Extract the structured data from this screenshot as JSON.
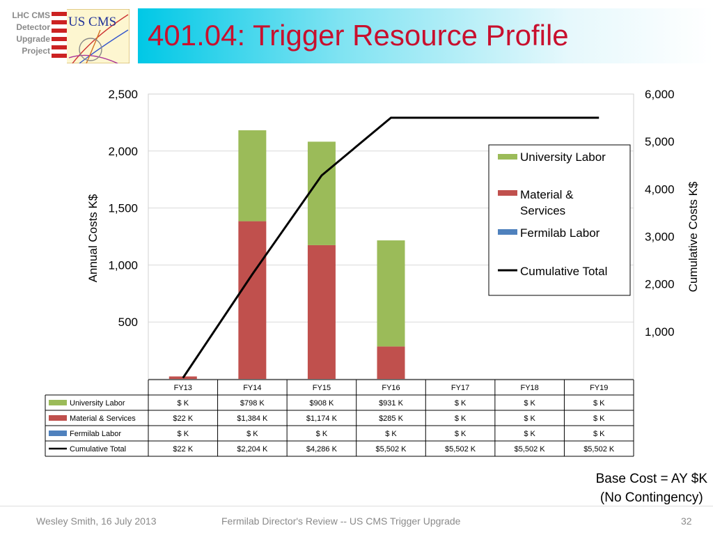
{
  "project_label": [
    "LHC CMS",
    "Detector",
    "Upgrade",
    "Project"
  ],
  "logo_text": "US CMS",
  "slide_title": "401.04: Trigger Resource Profile",
  "colors": {
    "university_labor": "#9bbb59",
    "material_services": "#c0504d",
    "fermilab_labor": "#4f81bd",
    "cumulative": "#000000",
    "title_red": "#c8102e",
    "title_bar": "#00c8e6"
  },
  "chart_data": {
    "type": "bar",
    "stacked": true,
    "categories": [
      "FY13",
      "FY14",
      "FY15",
      "FY16",
      "FY17",
      "FY18",
      "FY19"
    ],
    "series": [
      {
        "name": "University Labor",
        "values": [
          0,
          798,
          908,
          931,
          0,
          0,
          0
        ]
      },
      {
        "name": "Material & Services",
        "values": [
          22,
          1384,
          1174,
          285,
          0,
          0,
          0
        ]
      },
      {
        "name": "Fermilab Labor",
        "values": [
          0,
          0,
          0,
          0,
          0,
          0,
          0
        ]
      }
    ],
    "line_series": {
      "name": "Cumulative Total",
      "axis": "right",
      "values": [
        22,
        2204,
        4286,
        5502,
        5502,
        5502,
        5502
      ]
    },
    "ylabel": "Annual Costs K$",
    "ylabel_right": "Cumulative Costs K$",
    "ylim": [
      0,
      2500
    ],
    "ylim_right": [
      0,
      6000
    ],
    "yticks": [
      "500",
      "1,000",
      "1,500",
      "2,000",
      "2,500"
    ],
    "yticks_right": [
      "1,000",
      "2,000",
      "3,000",
      "4,000",
      "5,000",
      "6,000"
    ],
    "legend_position": "right",
    "legend": [
      "University Labor",
      "Material & Services",
      "Fermilab Labor",
      "Cumulative Total"
    ]
  },
  "data_table": {
    "columns": [
      "FY13",
      "FY14",
      "FY15",
      "FY16",
      "FY17",
      "FY18",
      "FY19"
    ],
    "rows": [
      {
        "label": "University Labor",
        "cells": [
          "$ K",
          "$798 K",
          "$908 K",
          "$931 K",
          "$ K",
          "$ K",
          "$ K"
        ]
      },
      {
        "label": "Material & Services",
        "cells": [
          "$22 K",
          "$1,384 K",
          "$1,174 K",
          "$285 K",
          "$ K",
          "$ K",
          "$ K"
        ]
      },
      {
        "label": "Fermilab Labor",
        "cells": [
          "$ K",
          "$ K",
          "$ K",
          "$ K",
          "$ K",
          "$ K",
          "$ K"
        ]
      },
      {
        "label": "Cumulative Total",
        "cells": [
          "$22 K",
          "$2,204 K",
          "$4,286 K",
          "$5,502 K",
          "$5,502 K",
          "$5,502 K",
          "$5,502 K"
        ]
      }
    ]
  },
  "base_cost_note": [
    "Base Cost = AY $K",
    "(No Contingency)"
  ],
  "footer": {
    "author_date": "Wesley Smith, 16 July 2013",
    "event": "Fermilab Director's Review -- US CMS Trigger Upgrade",
    "page": "32"
  }
}
